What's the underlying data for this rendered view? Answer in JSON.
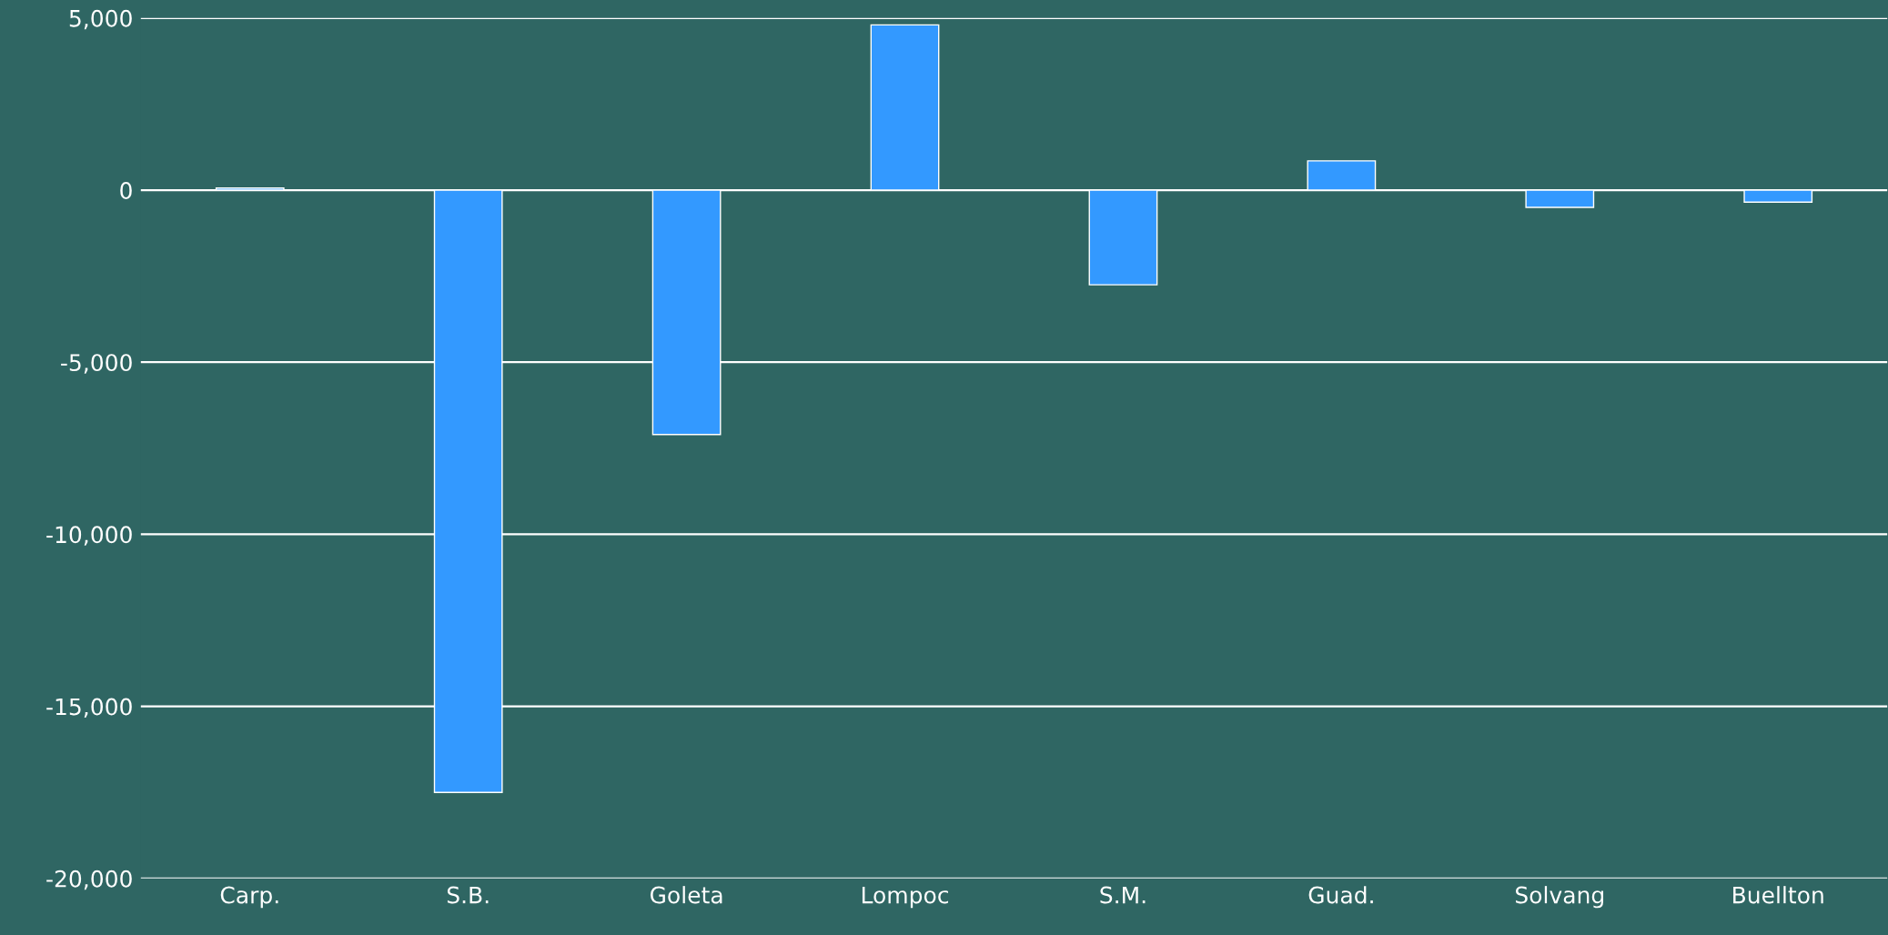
{
  "chart_data": {
    "type": "bar",
    "categories": [
      "Carp.",
      "S.B.",
      "Goleta",
      "Lompoc",
      "S.M.",
      "Guad.",
      "Solvang",
      "Buellton"
    ],
    "values": [
      60,
      -17500,
      -7100,
      4800,
      -2750,
      850,
      -500,
      -350
    ],
    "color": "#3399ff",
    "ylim": [
      -20000,
      5000
    ],
    "yticks": [
      {
        "value": -20000,
        "label": "-20,000"
      },
      {
        "value": -15000,
        "label": "-15,000"
      },
      {
        "value": -10000,
        "label": "-10,000"
      },
      {
        "value": -5000,
        "label": "-5,000"
      },
      0,
      {
        "value": 5000,
        "label": "5,000"
      }
    ],
    "grid": "y",
    "legend": false
  }
}
